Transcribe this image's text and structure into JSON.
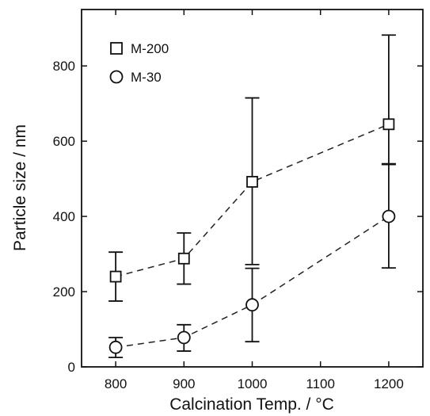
{
  "chart_data": {
    "type": "scatter",
    "title": "",
    "xlabel": "Calcination Temp. / °C",
    "ylabel": "Particle size / nm",
    "xlim": [
      750,
      1250
    ],
    "ylim": [
      0,
      950
    ],
    "xticks": [
      800,
      900,
      1000,
      1100,
      1200
    ],
    "yticks": [
      0,
      200,
      400,
      600,
      800
    ],
    "grid": false,
    "legend_position": "top-left",
    "series": [
      {
        "name": "M-200",
        "marker": "square",
        "line": "dashed",
        "x": [
          800,
          900,
          1000,
          1200
        ],
        "y": [
          240,
          288,
          492,
          645
        ],
        "err_low": [
          175,
          220,
          272,
          540
        ],
        "err_high": [
          305,
          356,
          715,
          882
        ]
      },
      {
        "name": "M-30",
        "marker": "circle",
        "line": "dashed",
        "x": [
          800,
          900,
          1000,
          1200
        ],
        "y": [
          52,
          78,
          165,
          400
        ],
        "err_low": [
          25,
          42,
          67,
          263
        ],
        "err_high": [
          78,
          112,
          262,
          538
        ]
      }
    ]
  }
}
